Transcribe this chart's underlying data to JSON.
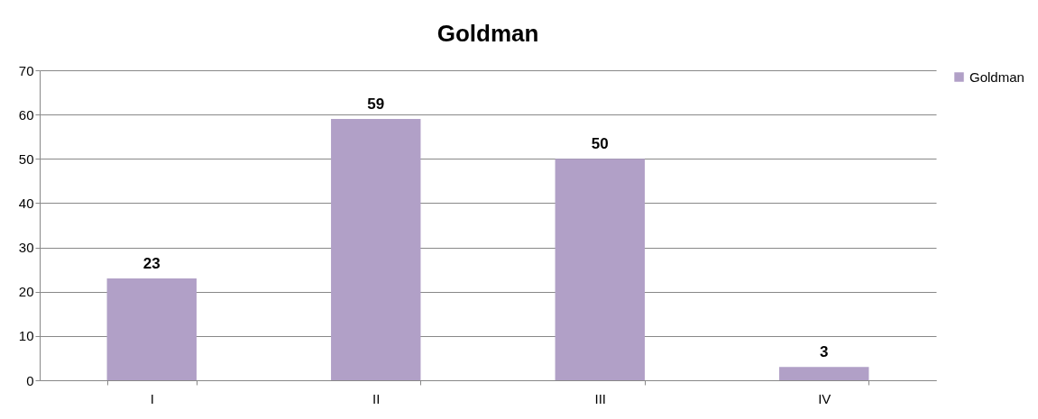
{
  "chart_data": {
    "type": "bar",
    "title": "Goldman",
    "categories": [
      "I",
      "II",
      "III",
      "IV"
    ],
    "series": [
      {
        "name": "Goldman",
        "color": "#b1a0c7",
        "values": [
          23,
          59,
          50,
          3
        ]
      }
    ],
    "ylim": [
      0,
      70
    ],
    "yticks": [
      0,
      10,
      20,
      30,
      40,
      50,
      60,
      70
    ],
    "grid": "y",
    "legend": "right",
    "data_labels": true
  }
}
